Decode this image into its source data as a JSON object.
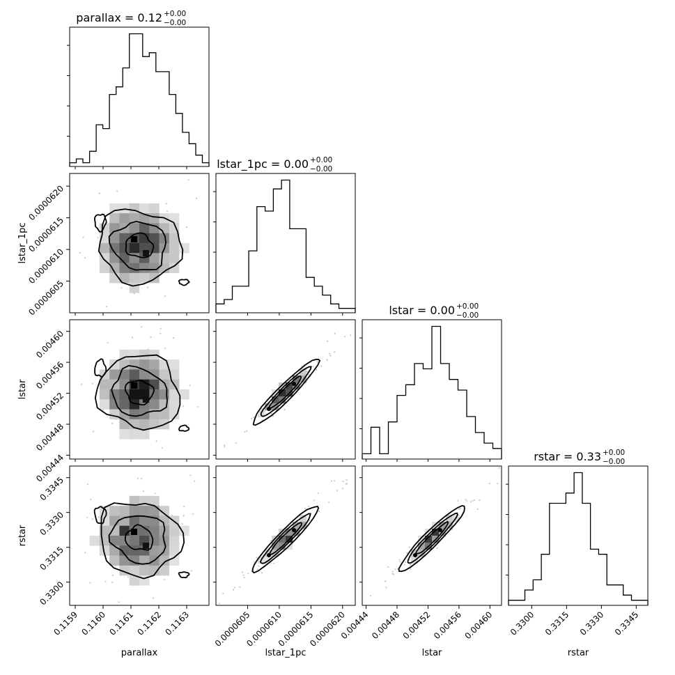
{
  "chart_data": {
    "type": "corner",
    "parameters": [
      {
        "name": "parallax",
        "title_main": "parallax = 0.12",
        "title_plus": "+0.00",
        "title_minus": "−0.00",
        "ticks": [
          "0.1159",
          "0.1160",
          "0.1161",
          "0.1162",
          "0.1163"
        ],
        "tick_values": [
          0.1159,
          0.116,
          0.1161,
          0.1162,
          0.1163
        ],
        "range": [
          0.11588,
          0.11638
        ]
      },
      {
        "name": "lstar_1pc",
        "title_main": "lstar_1pc = 0.00",
        "title_plus": "+0.00",
        "title_minus": "−0.00",
        "ticks": [
          "0.0000605",
          "0.0000610",
          "0.0000615",
          "0.0000620"
        ],
        "tick_values": [
          6.05e-05,
          6.1e-05,
          6.15e-05,
          6.2e-05
        ],
        "range": [
          6e-05,
          6.22e-05
        ]
      },
      {
        "name": "lstar",
        "title_main": "lstar = 0.00",
        "title_plus": "+0.00",
        "title_minus": "−0.00",
        "ticks": [
          "0.00444",
          "0.00448",
          "0.00452",
          "0.00456",
          "0.00460"
        ],
        "tick_values": [
          0.00444,
          0.00448,
          0.00452,
          0.00456,
          0.0046
        ],
        "range": [
          0.004435,
          0.004615
        ]
      },
      {
        "name": "rstar",
        "title_main": "rstar = 0.33",
        "title_plus": "+0.00",
        "title_minus": "−0.00",
        "ticks": [
          "0.3300",
          "0.3315",
          "0.3330",
          "0.3345"
        ],
        "tick_values": [
          0.33,
          0.3315,
          0.333,
          0.3345
        ],
        "range": [
          0.329,
          0.335
        ]
      }
    ],
    "histograms": [
      {
        "param": "parallax",
        "counts": [
          1,
          2,
          1,
          4,
          11,
          10,
          19,
          21,
          26,
          35,
          35,
          29,
          30,
          25,
          25,
          19,
          14,
          9,
          6,
          3,
          1
        ]
      },
      {
        "param": "lstar_1pc",
        "counts": [
          2,
          3,
          6,
          6,
          14,
          24,
          23,
          28,
          30,
          19,
          19,
          8,
          6,
          4,
          2,
          1,
          1
        ]
      },
      {
        "param": "lstar",
        "counts": [
          1,
          6,
          1,
          7,
          12,
          14,
          18,
          17,
          25,
          18,
          15,
          13,
          8,
          5,
          3,
          2
        ]
      },
      {
        "param": "rstar",
        "counts": [
          1,
          1,
          3,
          5,
          10,
          20,
          20,
          22,
          26,
          20,
          11,
          10,
          4,
          4,
          2,
          1,
          1
        ]
      }
    ],
    "correlations": [
      {
        "x": "parallax",
        "y": "lstar_1pc",
        "shape": "round cloud, no correlation"
      },
      {
        "x": "parallax",
        "y": "lstar",
        "shape": "round cloud, no correlation"
      },
      {
        "x": "parallax",
        "y": "rstar",
        "shape": "round cloud, no correlation"
      },
      {
        "x": "lstar_1pc",
        "y": "lstar",
        "shape": "tight positive linear"
      },
      {
        "x": "lstar_1pc",
        "y": "rstar",
        "shape": "tight positive linear"
      },
      {
        "x": "lstar",
        "y": "rstar",
        "shape": "tight positive linear"
      }
    ],
    "grid": false,
    "legend": "none"
  }
}
